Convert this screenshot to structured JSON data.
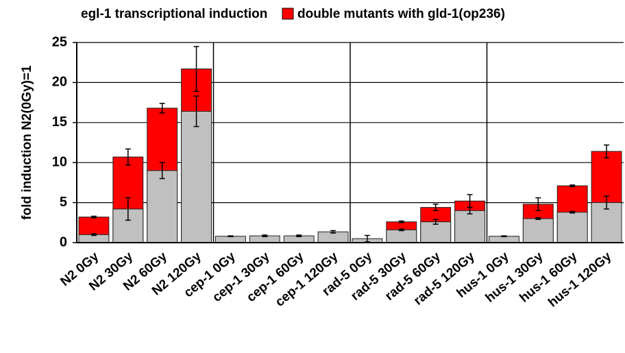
{
  "chart_data": {
    "type": "bar",
    "categories": [
      "N2 0Gy",
      "N2 30Gy",
      "N2 60Gy",
      "N2 120Gy",
      "cep-1 0Gy",
      "cep-1 30Gy",
      "cep-1 60Gy",
      "cep-1 120Gy",
      "rad-5 0Gy",
      "rad-5 30Gy",
      "rad-5 60Gy",
      "rad-5 120Gy",
      "hus-1 0Gy",
      "hus-1 30Gy",
      "hus-1 60Gy",
      "hus-1 120Gy"
    ],
    "series": [
      {
        "name": "egl-1 transcriptional induction",
        "color": "#c0c0c0",
        "values": [
          1.0,
          4.2,
          9.0,
          16.4,
          0.8,
          0.85,
          0.85,
          1.35,
          0.5,
          1.6,
          2.6,
          4.0,
          0.8,
          3.0,
          3.8,
          5.0
        ],
        "errors": [
          0.1,
          1.4,
          1.0,
          1.9,
          0.05,
          0.1,
          0.1,
          0.15,
          0.4,
          0.1,
          0.3,
          0.4,
          0.05,
          0.1,
          0.1,
          0.8
        ]
      },
      {
        "name": "double mutants with gld-1(op236)",
        "color": "#ff0000",
        "values": [
          3.2,
          10.7,
          16.8,
          21.7,
          null,
          null,
          null,
          null,
          null,
          2.6,
          4.4,
          5.2,
          null,
          4.8,
          7.1,
          11.4
        ],
        "errors": [
          0.1,
          1.0,
          0.6,
          2.8,
          null,
          null,
          null,
          null,
          null,
          0.1,
          0.4,
          0.8,
          null,
          0.8,
          0.1,
          0.8
        ]
      }
    ],
    "ylabel": "fold induction N2(0Gy)=1",
    "ylim": [
      0,
      25
    ],
    "yticks": [
      0,
      5,
      10,
      15,
      20,
      25
    ],
    "grid": true
  }
}
